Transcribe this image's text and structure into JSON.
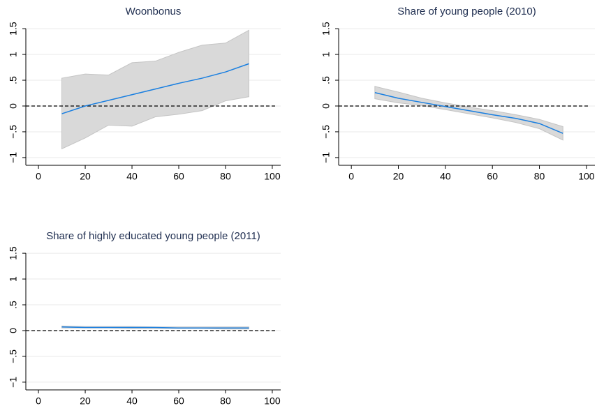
{
  "chart_data": [
    {
      "type": "line",
      "title": "Woonbonus",
      "x": [
        10,
        20,
        30,
        40,
        50,
        60,
        70,
        80,
        90
      ],
      "values": [
        -0.15,
        0.0,
        0.11,
        0.22,
        0.33,
        0.44,
        0.54,
        0.66,
        0.82
      ],
      "lower": [
        -0.83,
        -0.62,
        -0.37,
        -0.39,
        -0.21,
        -0.16,
        -0.09,
        0.1,
        0.18
      ],
      "upper": [
        0.54,
        0.62,
        0.6,
        0.84,
        0.87,
        1.04,
        1.18,
        1.22,
        1.47
      ],
      "color": "#1a7fe0",
      "band_color": "#d9d9d9",
      "reference_line": 0,
      "xlim": [
        -5.4,
        103.6
      ],
      "xticks": [
        0,
        20,
        40,
        60,
        80,
        100
      ],
      "ylim": [
        -1.15,
        1.65
      ],
      "yticks": [
        {
          "value": -1,
          "label": "−1"
        },
        {
          "value": -0.5,
          "label": "−.5"
        },
        0,
        {
          "value": 0.5,
          "label": ".5"
        },
        1,
        {
          "value": 1.5,
          "label": "1.5"
        }
      ],
      "grid": true
    },
    {
      "type": "line",
      "title": "Share of young people (2010)",
      "x": [
        10,
        20,
        30,
        40,
        50,
        60,
        70,
        80,
        90
      ],
      "values": [
        0.26,
        0.15,
        0.07,
        -0.01,
        -0.09,
        -0.17,
        -0.24,
        -0.34,
        -0.53
      ],
      "lower": [
        0.14,
        0.06,
        0.01,
        -0.07,
        -0.15,
        -0.23,
        -0.32,
        -0.44,
        -0.66
      ],
      "upper": [
        0.38,
        0.27,
        0.15,
        0.06,
        -0.02,
        -0.09,
        -0.17,
        -0.26,
        -0.4
      ],
      "color": "#1a7fe0",
      "band_color": "#d9d9d9",
      "reference_line": 0,
      "xlim": [
        -5.4,
        103.6
      ],
      "xticks": [
        0,
        20,
        40,
        60,
        80,
        100
      ],
      "ylim": [
        -1.15,
        1.65
      ],
      "yticks": [
        {
          "value": -1,
          "label": "−1"
        },
        {
          "value": -0.5,
          "label": "−.5"
        },
        0,
        {
          "value": 0.5,
          "label": ".5"
        },
        1,
        {
          "value": 1.5,
          "label": "1.5"
        }
      ],
      "grid": true
    },
    {
      "type": "line",
      "title": "Share of highly educated young people (2011)",
      "x": [
        10,
        20,
        30,
        40,
        50,
        60,
        70,
        80,
        90
      ],
      "values": [
        0.07,
        0.06,
        0.06,
        0.06,
        0.06,
        0.05,
        0.05,
        0.05,
        0.05
      ],
      "lower": [
        0.05,
        0.05,
        0.05,
        0.04,
        0.04,
        0.04,
        0.04,
        0.03,
        0.03
      ],
      "upper": [
        0.09,
        0.08,
        0.08,
        0.08,
        0.07,
        0.07,
        0.07,
        0.07,
        0.07
      ],
      "color": "#1a7fe0",
      "band_color": "#d9d9d9",
      "reference_line": 0,
      "xlim": [
        -5.4,
        103.6
      ],
      "xticks": [
        0,
        20,
        40,
        60,
        80,
        100
      ],
      "ylim": [
        -1.15,
        1.65
      ],
      "yticks": [
        {
          "value": -1,
          "label": "−1"
        },
        {
          "value": -0.5,
          "label": "−.5"
        },
        0,
        {
          "value": 0.5,
          "label": ".5"
        },
        1,
        {
          "value": 1.5,
          "label": "1.5"
        }
      ],
      "grid": true
    }
  ]
}
